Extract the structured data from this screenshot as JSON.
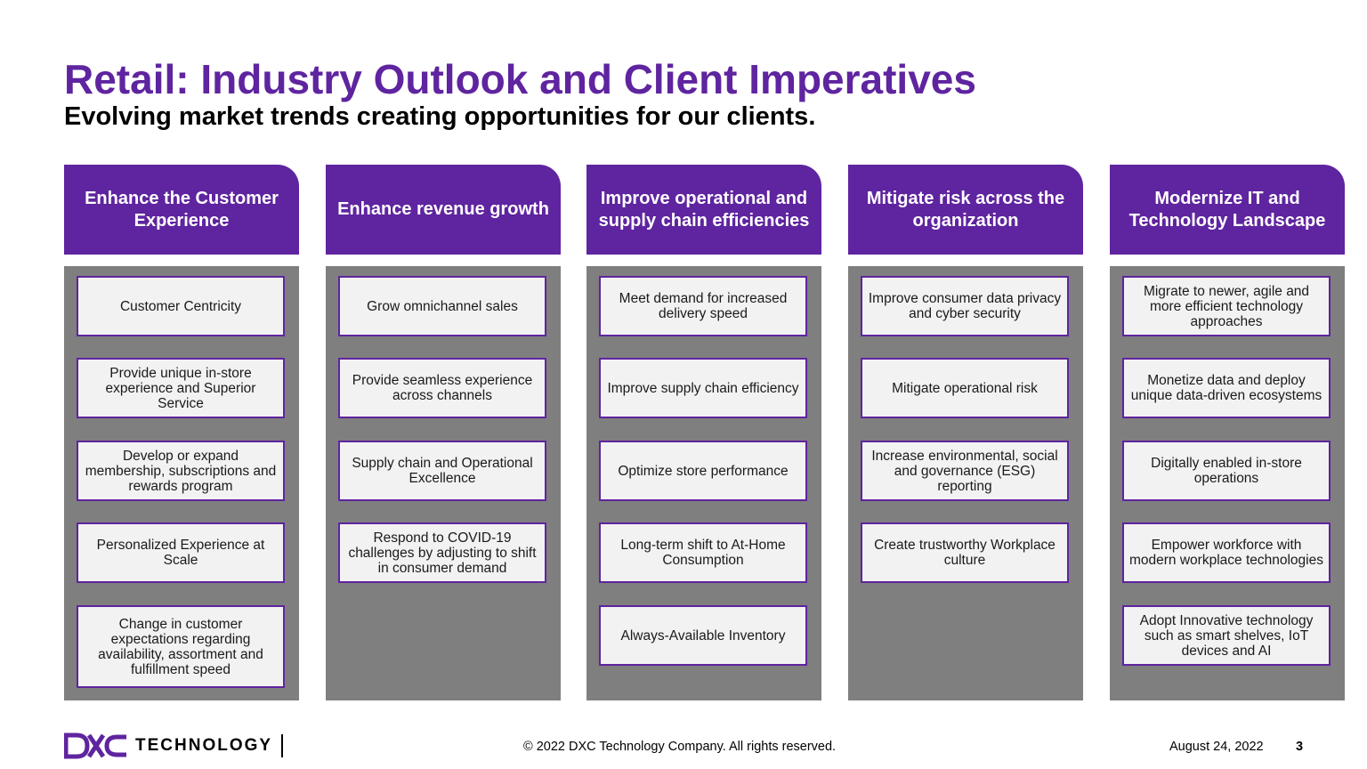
{
  "header": {
    "title": "Retail: Industry Outlook and Client Imperatives",
    "subtitle": "Evolving market trends creating opportunities for our clients."
  },
  "columns": [
    {
      "heading": "Enhance the Customer Experience",
      "items": [
        "Customer Centricity",
        "Provide unique in-store experience and Superior Service",
        "Develop or expand membership, subscriptions and rewards program",
        "Personalized Experience at Scale",
        "Change in customer expectations regarding availability, assortment and fulfillment speed"
      ]
    },
    {
      "heading": "Enhance revenue growth",
      "items": [
        "Grow omnichannel sales",
        "Provide seamless experience across channels",
        "Supply chain and Operational Excellence",
        "Respond to COVID-19 challenges by adjusting to shift in consumer demand"
      ]
    },
    {
      "heading": "Improve operational and supply chain efficiencies",
      "items": [
        "Meet demand for increased delivery speed",
        "Improve supply chain efficiency",
        "Optimize store performance",
        "Long-term shift to At-Home Consumption",
        "Always-Available Inventory"
      ]
    },
    {
      "heading": "Mitigate risk across the organization",
      "items": [
        "Improve consumer data privacy and cyber security",
        "Mitigate operational risk",
        "Increase environmental, social and governance (ESG) reporting",
        "Create trustworthy Workplace culture"
      ]
    },
    {
      "heading": "Modernize IT and Technology Landscape",
      "items": [
        "Migrate to newer, agile and more efficient technology approaches",
        "Monetize data and deploy unique data-driven ecosystems",
        "Digitally enabled in-store operations",
        "Empower workforce with modern workplace technologies",
        "Adopt Innovative technology such as smart shelves, IoT devices and AI"
      ]
    }
  ],
  "footer": {
    "logo_text": "TECHNOLOGY",
    "copyright": "© 2022 DXC Technology Company. All rights reserved.",
    "date": "August 24, 2022",
    "page": "3"
  },
  "colors": {
    "purple": "#5f249f",
    "panel_gray": "#7f7f7f",
    "card_bg": "#f2f2f2"
  }
}
